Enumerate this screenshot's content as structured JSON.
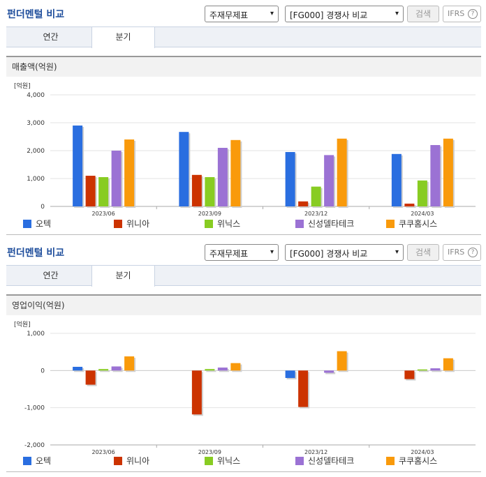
{
  "panels": [
    {
      "title": "펀더멘털 비교",
      "select1": "주재무제표",
      "select2": "[FG000] 경쟁사 비교",
      "search_label": "검색",
      "ifrs_label": "IFRS",
      "ifrs_help": "?",
      "tabs": [
        {
          "label": "연간"
        },
        {
          "label": "분기"
        }
      ],
      "active_tab": 1,
      "section_title": "매출액(억원)",
      "unit_label": "[억원]"
    },
    {
      "title": "펀더멘털 비교",
      "select1": "주재무제표",
      "select2": "[FG000] 경쟁사 비교",
      "search_label": "검색",
      "ifrs_label": "IFRS",
      "ifrs_help": "?",
      "tabs": [
        {
          "label": "연간"
        },
        {
          "label": "분기"
        }
      ],
      "active_tab": 1,
      "section_title": "영업이익(억원)",
      "unit_label": "[억원]"
    }
  ],
  "chevron": "▾",
  "colors": [
    "#2a6ee0",
    "#cc3300",
    "#88cc22",
    "#9b72d4",
    "#f99a0b"
  ],
  "chart_data": [
    {
      "type": "bar",
      "title": "매출액(억원)",
      "ylabel": "[억원]",
      "categories": [
        "2023/06",
        "2023/09",
        "2023/12",
        "2024/03"
      ],
      "ylim": [
        0,
        4000
      ],
      "yticks": [
        0,
        1000,
        2000,
        3000,
        4000
      ],
      "ytick_labels": [
        "0",
        "1,000",
        "2,000",
        "3,000",
        "4,000"
      ],
      "grid": true,
      "legend_position": "bottom",
      "series": [
        {
          "name": "오텍",
          "values": [
            2900,
            2670,
            1950,
            1880
          ]
        },
        {
          "name": "위니아",
          "values": [
            1100,
            1130,
            180,
            100
          ]
        },
        {
          "name": "위닉스",
          "values": [
            1050,
            1050,
            710,
            930
          ]
        },
        {
          "name": "신성델타테크",
          "values": [
            2000,
            2100,
            1840,
            2200
          ]
        },
        {
          "name": "쿠쿠홈시스",
          "values": [
            2400,
            2380,
            2430,
            2430
          ]
        }
      ]
    },
    {
      "type": "bar",
      "title": "영업이익(억원)",
      "ylabel": "[억원]",
      "categories": [
        "2023/06",
        "2023/09",
        "2023/12",
        "2024/03"
      ],
      "ylim": [
        -2000,
        1000
      ],
      "yticks": [
        -2000,
        -1000,
        0,
        1000
      ],
      "ytick_labels": [
        "-2,000",
        "-1,000",
        "0",
        "1,000"
      ],
      "grid": true,
      "legend_position": "bottom",
      "series": [
        {
          "name": "오텍",
          "values": [
            100,
            0,
            -200,
            0
          ]
        },
        {
          "name": "위니아",
          "values": [
            -380,
            -1180,
            -980,
            -230
          ]
        },
        {
          "name": "위닉스",
          "values": [
            40,
            40,
            0,
            30
          ]
        },
        {
          "name": "신성델타테크",
          "values": [
            110,
            80,
            -60,
            60
          ]
        },
        {
          "name": "쿠쿠홈시스",
          "values": [
            380,
            200,
            520,
            330
          ]
        }
      ]
    }
  ]
}
